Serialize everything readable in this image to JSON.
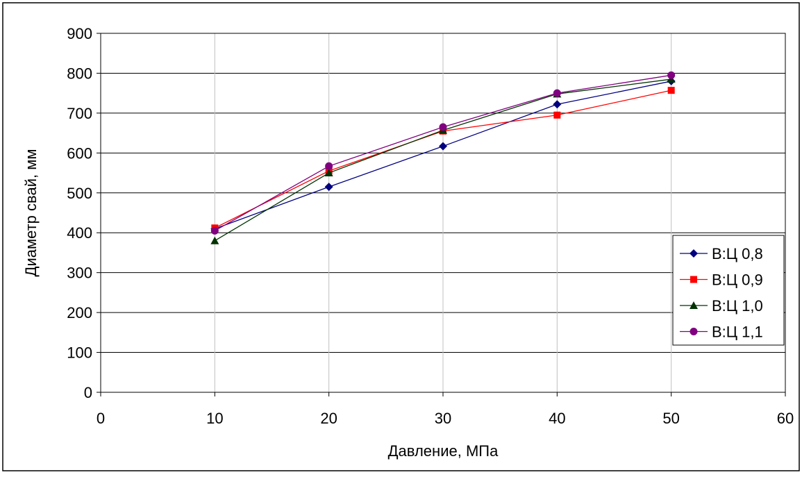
{
  "chart_data": {
    "type": "line",
    "title": "",
    "xlabel": "Давление, МПа",
    "ylabel": "Диаметр свай, мм",
    "xlim": [
      0,
      60
    ],
    "ylim": [
      0,
      900
    ],
    "xticks": [
      0,
      10,
      20,
      30,
      40,
      50,
      60
    ],
    "yticks": [
      0,
      100,
      200,
      300,
      400,
      500,
      600,
      700,
      800,
      900
    ],
    "grid": true,
    "legend_position": "right",
    "x": [
      10,
      20,
      30,
      40,
      50
    ],
    "series": [
      {
        "name": "В:Ц 0,8",
        "color": "#000080",
        "marker": "diamond",
        "values": [
          410,
          515,
          617,
          722,
          780
        ]
      },
      {
        "name": "В:Ц 0,9",
        "color": "#ff0000",
        "marker": "square",
        "values": [
          412,
          555,
          655,
          695,
          757
        ]
      },
      {
        "name": "В:Ц 1,0",
        "color": "#003300",
        "marker": "triangle",
        "values": [
          380,
          550,
          657,
          748,
          785
        ]
      },
      {
        "name": "В:Ц 1,1",
        "color": "#800080",
        "marker": "circle",
        "values": [
          405,
          567,
          665,
          750,
          795
        ]
      }
    ]
  }
}
